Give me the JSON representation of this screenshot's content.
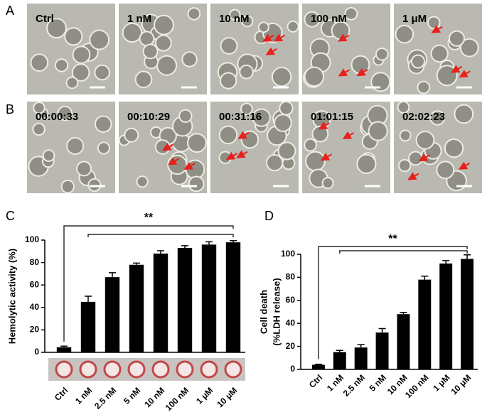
{
  "panel_a": {
    "label": "A",
    "images": [
      "Ctrl",
      "1 nM",
      "10 nM",
      "100 nM",
      "1 μM"
    ]
  },
  "panel_b": {
    "label": "B",
    "images": [
      "00:00:33",
      "00:10:29",
      "00:31:16",
      "01:01:15",
      "02:02:23"
    ]
  },
  "chart_data": [
    {
      "type": "bar",
      "panel_label": "C",
      "ylabel": [
        "Hemolytic activity (%)"
      ],
      "categories": [
        "Ctrl",
        "1 nM",
        "2.5 nM",
        "5 nM",
        "10 nM",
        "100 nM",
        "1 μM",
        "10 μM"
      ],
      "values": [
        4.5,
        45,
        67,
        78,
        88,
        93,
        96,
        98
      ],
      "errors": [
        1,
        5,
        4,
        1.5,
        2.5,
        2,
        2.5,
        1.5
      ],
      "color": "#000000",
      "ylim": [
        0,
        100
      ],
      "yticks": [
        0,
        20,
        40,
        60,
        80,
        100
      ],
      "significance": "**"
    },
    {
      "type": "bar",
      "panel_label": "D",
      "ylabel": [
        "Cell death",
        "(%LDH release)"
      ],
      "categories": [
        "Ctrl",
        "1 nM",
        "2.5 nM",
        "5 nM",
        "10 nM",
        "100 nM",
        "1 μM",
        "10 μM"
      ],
      "values": [
        4,
        15,
        19,
        32,
        48,
        78,
        92,
        96
      ],
      "errors": [
        0.5,
        1.5,
        2.5,
        3.5,
        1.5,
        3,
        2.5,
        3.5
      ],
      "color": "#000000",
      "ylim": [
        0,
        100
      ],
      "yticks": [
        0,
        20,
        40,
        60,
        80,
        100
      ],
      "significance": "**"
    }
  ]
}
